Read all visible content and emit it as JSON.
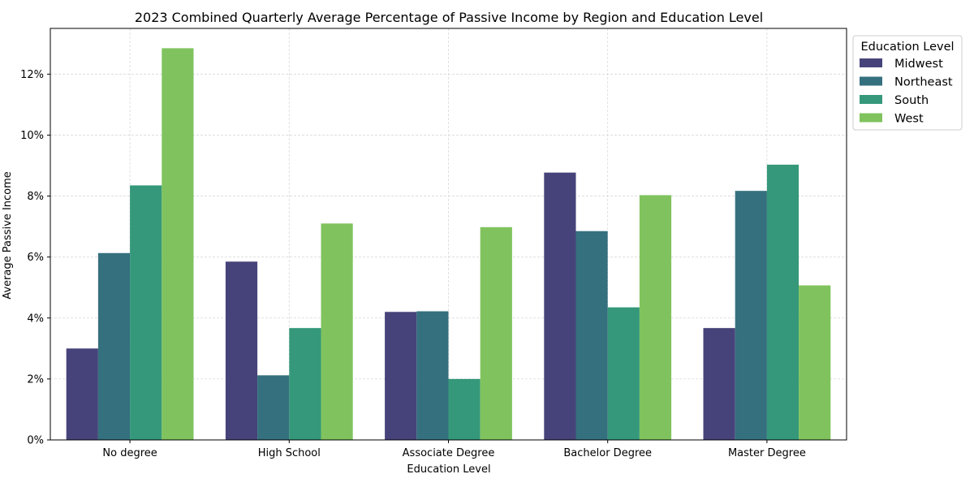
{
  "chart_data": {
    "type": "bar",
    "title": "2023 Combined Quarterly Average Percentage of Passive Income by Region and Education Level",
    "xlabel": "Education Level",
    "ylabel": "Average Passive Income",
    "categories": [
      "No degree",
      "High School",
      "Associate Degree",
      "Bachelor Degree",
      "Master Degree"
    ],
    "series": [
      {
        "name": "Midwest",
        "color": "#46437a",
        "values": [
          3.0,
          5.85,
          4.2,
          8.77,
          3.67
        ]
      },
      {
        "name": "Northeast",
        "color": "#35707f",
        "values": [
          6.13,
          2.12,
          4.22,
          6.85,
          8.17
        ]
      },
      {
        "name": "South",
        "color": "#35987a",
        "values": [
          8.35,
          3.67,
          2.0,
          4.35,
          9.03
        ]
      },
      {
        "name": "West",
        "color": "#80c35e",
        "values": [
          12.85,
          7.1,
          6.98,
          8.03,
          5.07
        ]
      }
    ],
    "ylim": [
      0,
      13.5
    ],
    "yticks": [
      0,
      2,
      4,
      6,
      8,
      10,
      12
    ],
    "ytick_labels": [
      "0%",
      "2%",
      "4%",
      "6%",
      "8%",
      "10%",
      "12%"
    ],
    "grid": true,
    "legend": {
      "title": "Education Level",
      "placement": "upper-right-outside"
    }
  }
}
